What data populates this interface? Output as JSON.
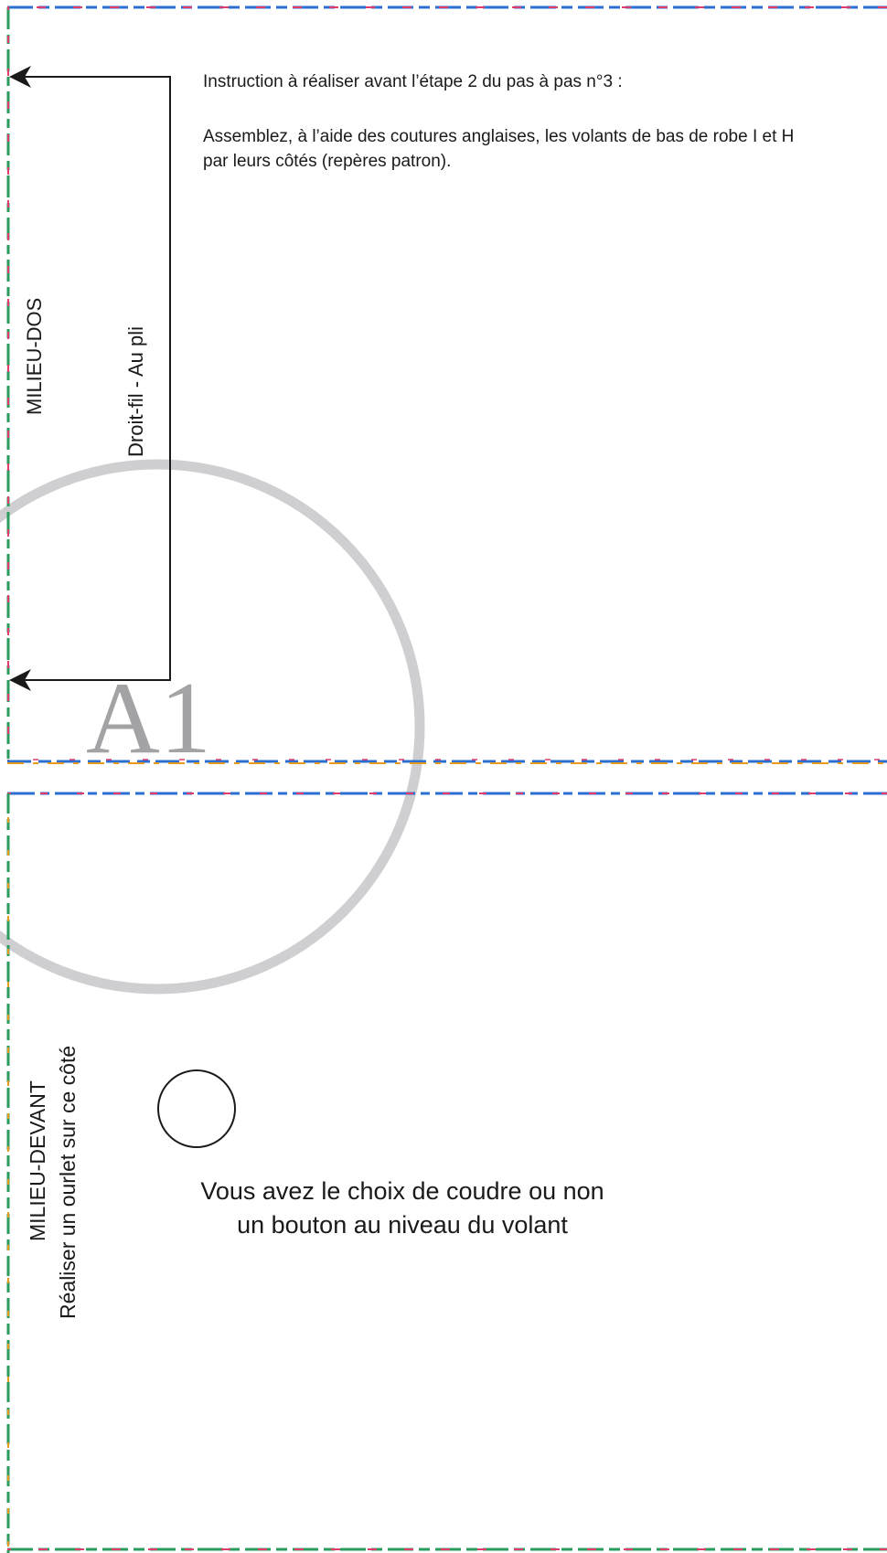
{
  "colors": {
    "ink": "#1a1a1a",
    "guide_circle": "#cfcfd1",
    "piece_label": "#a3a3a6",
    "border_stripe_1": "#e23a6b",
    "border_stripe_2": "#2a9d5c",
    "border_stripe_3": "#2a6fd1",
    "border_stripe_4": "#e69a1e"
  },
  "instructions": {
    "title": "Instruction à réaliser avant l’étape 2 du pas à pas n°3 :",
    "body": "Assemblez, à l’aide des coutures anglaises, les volants de bas de robe I et H par leurs côtés (repères patron)."
  },
  "pattern_top": {
    "center_back_label": "MILIEU-DOS",
    "grain_label": "Droit-fil - Au pli",
    "piece_label": "A1"
  },
  "pattern_bottom": {
    "center_front_label": "MILIEU-DEVANT",
    "hem_label": "Réaliser un ourlet sur ce côté",
    "button_note_line1": "Vous avez le choix de coudre ou non",
    "button_note_line2": "un bouton au niveau du volant"
  },
  "icons": {
    "arrow": "arrow-left-icon",
    "button_marker": "button-circle-icon"
  }
}
